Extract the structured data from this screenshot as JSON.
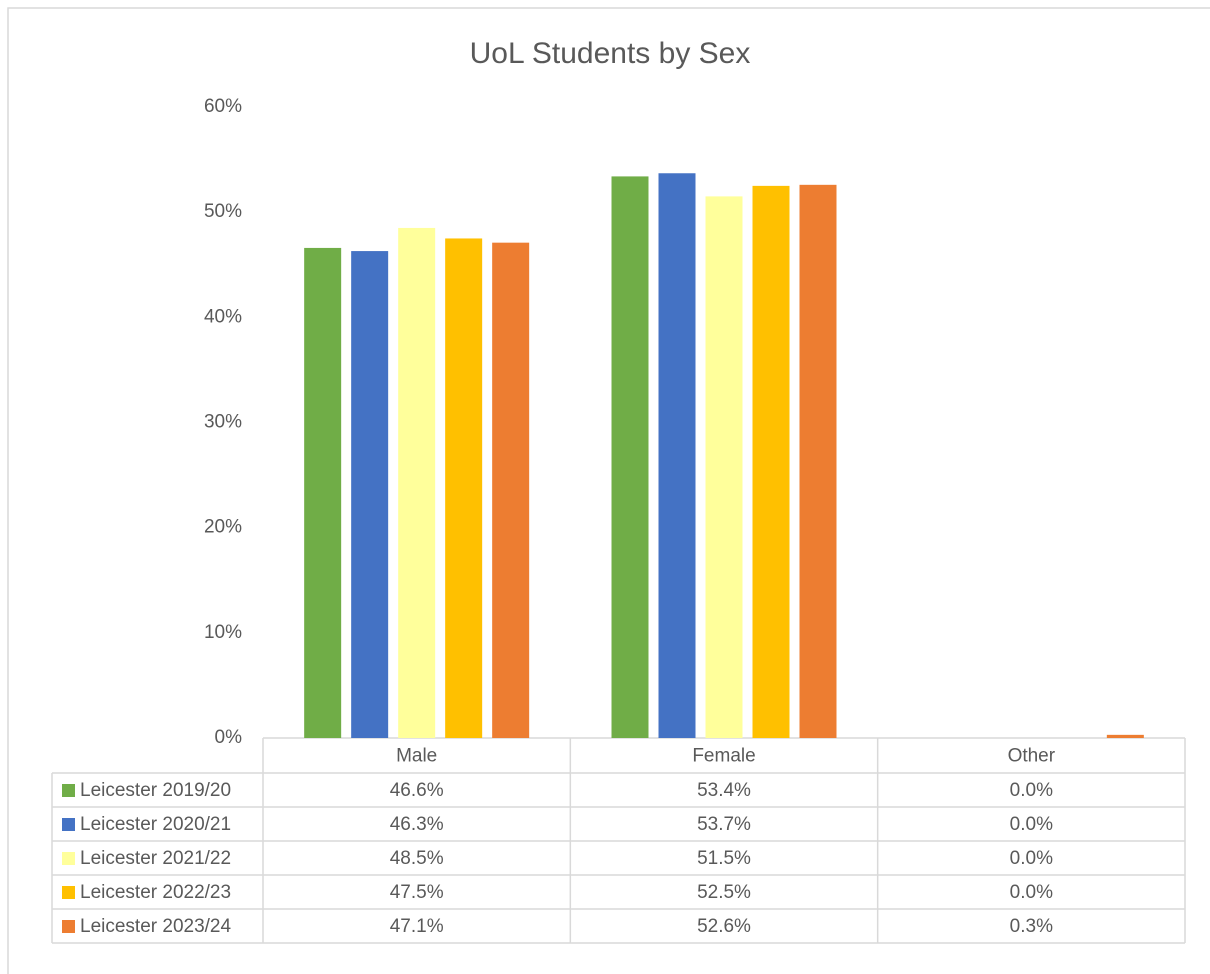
{
  "chart_data": {
    "type": "bar",
    "title": "UoL Students by Sex",
    "categories": [
      "Male",
      "Female",
      "Other"
    ],
    "series": [
      {
        "name": "Leicester 2019/20",
        "color": "#70ad47",
        "values": [
          46.6,
          53.4,
          0.0
        ],
        "value_labels": [
          "46.6%",
          "53.4%",
          "0.0%"
        ]
      },
      {
        "name": "Leicester 2020/21",
        "color": "#4472c4",
        "values": [
          46.3,
          53.7,
          0.0
        ],
        "value_labels": [
          "46.3%",
          "53.7%",
          "0.0%"
        ]
      },
      {
        "name": "Leicester 2021/22",
        "color": "#ffff9b",
        "values": [
          48.5,
          51.5,
          0.0
        ],
        "value_labels": [
          "48.5%",
          "51.5%",
          "0.0%"
        ]
      },
      {
        "name": "Leicester 2022/23",
        "color": "#ffc000",
        "values": [
          47.5,
          52.5,
          0.0
        ],
        "value_labels": [
          "47.5%",
          "52.5%",
          "0.0%"
        ]
      },
      {
        "name": "Leicester 2023/24",
        "color": "#ed7d31",
        "values": [
          47.1,
          52.6,
          0.3
        ],
        "value_labels": [
          "47.1%",
          "52.6%",
          "0.3%"
        ]
      }
    ],
    "ylim": [
      0,
      60
    ],
    "yticks": [
      {
        "value": 0,
        "label": "0%"
      },
      {
        "value": 10,
        "label": "10%"
      },
      {
        "value": 20,
        "label": "20%"
      },
      {
        "value": 30,
        "label": "30%"
      },
      {
        "value": 40,
        "label": "40%"
      },
      {
        "value": 50,
        "label": "50%"
      },
      {
        "value": 60,
        "label": "60%"
      }
    ],
    "grid": false
  }
}
